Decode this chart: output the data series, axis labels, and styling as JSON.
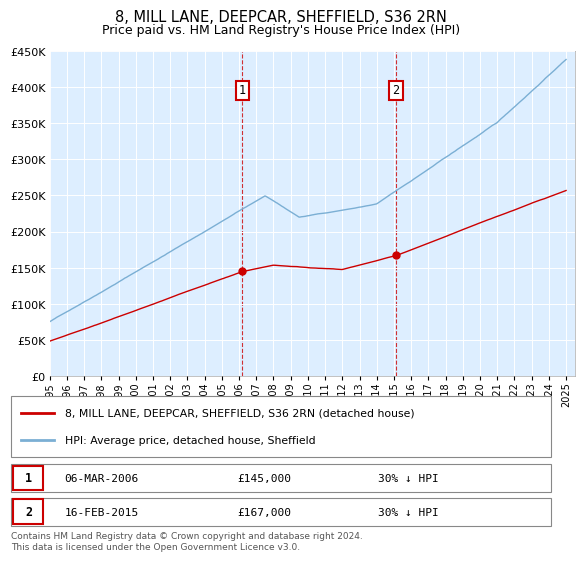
{
  "title": "8, MILL LANE, DEEPCAR, SHEFFIELD, S36 2RN",
  "subtitle": "Price paid vs. HM Land Registry's House Price Index (HPI)",
  "legend_property": "8, MILL LANE, DEEPCAR, SHEFFIELD, S36 2RN (detached house)",
  "legend_hpi": "HPI: Average price, detached house, Sheffield",
  "footer": "Contains HM Land Registry data © Crown copyright and database right 2024.\nThis data is licensed under the Open Government Licence v3.0.",
  "sale1_label": "1",
  "sale1_date": "06-MAR-2006",
  "sale1_price": "£145,000",
  "sale1_hpi": "30% ↓ HPI",
  "sale2_label": "2",
  "sale2_date": "16-FEB-2015",
  "sale2_price": "£167,000",
  "sale2_hpi": "30% ↓ HPI",
  "sale1_x": 2006.18,
  "sale1_y": 145000,
  "sale2_x": 2015.12,
  "sale2_y": 167000,
  "property_color": "#cc0000",
  "hpi_color": "#7bafd4",
  "background_color": "#ddeeff",
  "ylim": [
    0,
    450000
  ],
  "xlim": [
    1995,
    2025.5
  ],
  "yticks": [
    0,
    50000,
    100000,
    150000,
    200000,
    250000,
    300000,
    350000,
    400000,
    450000
  ],
  "xticks": [
    1995,
    1996,
    1997,
    1998,
    1999,
    2000,
    2001,
    2002,
    2003,
    2004,
    2005,
    2006,
    2007,
    2008,
    2009,
    2010,
    2011,
    2012,
    2013,
    2014,
    2015,
    2016,
    2017,
    2018,
    2019,
    2020,
    2021,
    2022,
    2023,
    2024,
    2025
  ]
}
